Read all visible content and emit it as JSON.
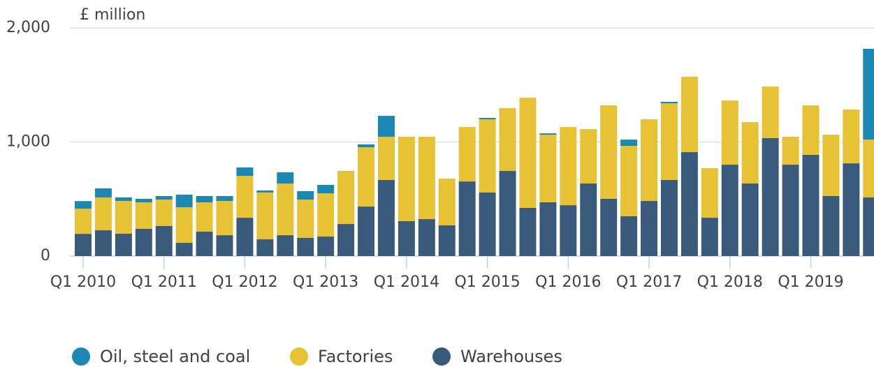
{
  "chart_data": {
    "type": "stacked_bar",
    "y_axis_label": "£ million",
    "categories": [
      "Q1 2010",
      null,
      null,
      null,
      "Q1 2011",
      null,
      null,
      null,
      "Q1 2012",
      null,
      null,
      null,
      "Q1 2013",
      null,
      null,
      null,
      "Q1 2014",
      null,
      null,
      null,
      "Q1 2015",
      null,
      null,
      null,
      "Q1 2016",
      null,
      null,
      null,
      "Q1 2017",
      null,
      null,
      null,
      "Q1 2018",
      null,
      null,
      null,
      "Q1 2019",
      null,
      null,
      null
    ],
    "series": [
      {
        "name": "Oil, steel and coal",
        "color": "#1b88b3",
        "values": [
          67,
          79,
          31,
          31,
          31,
          110,
          55,
          43,
          74,
          18,
          98,
          74,
          74,
          0,
          25,
          183,
          0,
          0,
          0,
          0,
          12,
          0,
          0,
          12,
          0,
          0,
          0,
          55,
          0,
          13,
          0,
          0,
          0,
          0,
          0,
          0,
          0,
          0,
          0,
          796
        ]
      },
      {
        "name": "Factories",
        "color": "#e6c234",
        "values": [
          220,
          288,
          287,
          232,
          232,
          312,
          257,
          300,
          367,
          410,
          453,
          336,
          379,
          465,
          520,
          379,
          740,
          722,
          410,
          477,
          642,
          551,
          966,
          593,
          685,
          477,
          819,
          617,
          716,
          672,
          661,
          435,
          563,
          538,
          452,
          245,
          434,
          538,
          471,
          507
        ]
      },
      {
        "name": "Warehouses",
        "color": "#3a5a7c",
        "values": [
          195,
          226,
          196,
          239,
          263,
          116,
          214,
          183,
          336,
          147,
          183,
          159,
          171,
          281,
          434,
          667,
          306,
          324,
          269,
          654,
          557,
          746,
          422,
          471,
          446,
          636,
          502,
          349,
          483,
          667,
          911,
          336,
          801,
          636,
          1034,
          801,
          887,
          526,
          813,
          514
        ]
      }
    ],
    "ylim": [
      0,
      2000
    ],
    "yticks": [
      0,
      {
        "value": 1000,
        "label": "1,000"
      },
      {
        "value": 2000,
        "label": "2,000"
      }
    ],
    "grid": true
  }
}
